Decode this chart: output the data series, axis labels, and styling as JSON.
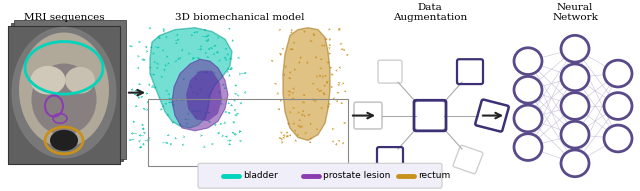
{
  "bg_color": "#ffffff",
  "section_labels": [
    "MRI sequences",
    "3D biomechanical model",
    "Data\nAugmentation",
    "Neural\nNetwork"
  ],
  "legend_items": [
    {
      "label": "bladder",
      "color": "#00d4bb"
    },
    {
      "label": "prostate lesion",
      "color": "#8b3db0"
    },
    {
      "label": "rectum",
      "color": "#c8921a"
    }
  ],
  "arrow_color": "#222222",
  "purple_dark": "#3d3075",
  "purple_light": "#c0b8d8",
  "gray_light": "#cccccc",
  "nn_node_color": "#5a4a8a",
  "nn_edge_color": "#c8c0d8",
  "bladder_color": "#00d4bb",
  "lesion_color": "#8b3db0",
  "rectum_color": "#c8921a",
  "teal_mesh": "#00c0aa",
  "gold_mesh": "#c89018"
}
